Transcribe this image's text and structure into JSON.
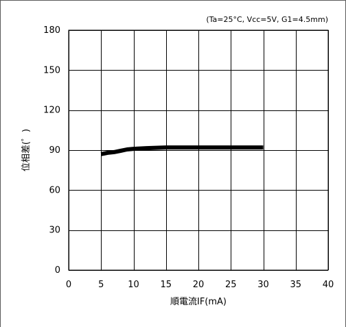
{
  "chart_data": {
    "type": "line",
    "xlabel": "順電流IF(mA)",
    "ylabel": "位相差(゜)",
    "annotation": "(Ta=25°C, Vcc=5V, G1=4.5mm)",
    "xlim": [
      0,
      40
    ],
    "ylim": [
      0,
      180
    ],
    "x_ticks": [
      0,
      5,
      10,
      15,
      20,
      25,
      30,
      35,
      40
    ],
    "y_ticks": [
      0,
      30,
      60,
      90,
      120,
      150,
      180
    ],
    "grid": true,
    "series": [
      {
        "x": [
          5,
          6,
          7,
          8,
          9,
          10,
          12,
          15,
          20,
          25,
          30
        ],
        "y": [
          87,
          88,
          88.5,
          89.5,
          90.5,
          91,
          91.5,
          92,
          92,
          92,
          92
        ],
        "color": "#000000"
      }
    ]
  }
}
